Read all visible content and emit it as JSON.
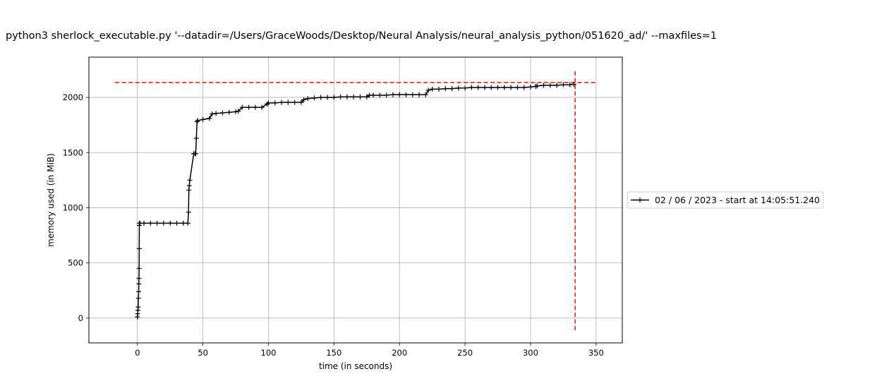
{
  "chart_data": {
    "type": "line",
    "title": "python3 sherlock_executable.py '--datadir=/Users/GraceWoods/Desktop/Neural Analysis/neural_analysis_python/051620_ad/' --maxfiles=1",
    "xlabel": "time (in seconds)",
    "ylabel": "memory used (in MiB)",
    "xlim": [
      -37,
      370
    ],
    "ylim": [
      -225,
      2365
    ],
    "xticks": [
      0,
      50,
      100,
      150,
      200,
      250,
      300,
      350
    ],
    "yticks": [
      0,
      500,
      1000,
      1500,
      2000
    ],
    "grid": true,
    "legend_position": "right",
    "series": [
      {
        "name": "02 / 06 / 2023 - start at 14:05:51.240",
        "color": "#000000",
        "marker": "+",
        "x": [
          0,
          0.2,
          0.4,
          0.6,
          0.8,
          1.0,
          1.1,
          1.2,
          1.3,
          1.4,
          1.5,
          1.6,
          1.8,
          2.0,
          5,
          10,
          15,
          20,
          25,
          30,
          35,
          38.5,
          39.0,
          39.3,
          39.6,
          40,
          43,
          44,
          44.5,
          45,
          45.5,
          46,
          50,
          55,
          57,
          60,
          65,
          70,
          75,
          77,
          80,
          85,
          90,
          95,
          99,
          100,
          105,
          110,
          115,
          120,
          125,
          127,
          130,
          135,
          140,
          145,
          150,
          155,
          160,
          165,
          170,
          175,
          177,
          180,
          185,
          190,
          195,
          200,
          205,
          210,
          215,
          220,
          222,
          225,
          230,
          235,
          240,
          245,
          250,
          255,
          260,
          265,
          270,
          275,
          280,
          285,
          290,
          295,
          300,
          304,
          305,
          310,
          315,
          320,
          325,
          330,
          333
        ],
        "y": [
          10,
          40,
          70,
          100,
          180,
          240,
          310,
          360,
          450,
          630,
          840,
          860,
          860,
          860,
          860,
          860,
          860,
          860,
          860,
          860,
          860,
          860,
          960,
          1160,
          1200,
          1250,
          1490,
          1490,
          1490,
          1630,
          1780,
          1790,
          1800,
          1810,
          1850,
          1855,
          1860,
          1865,
          1870,
          1875,
          1910,
          1910,
          1910,
          1910,
          1940,
          1950,
          1950,
          1955,
          1955,
          1955,
          1955,
          1980,
          1990,
          1995,
          2000,
          2000,
          2000,
          2005,
          2005,
          2005,
          2005,
          2005,
          2020,
          2020,
          2020,
          2020,
          2025,
          2025,
          2025,
          2025,
          2025,
          2025,
          2065,
          2075,
          2075,
          2080,
          2080,
          2085,
          2085,
          2090,
          2090,
          2090,
          2090,
          2090,
          2090,
          2090,
          2090,
          2090,
          2095,
          2100,
          2105,
          2110,
          2110,
          2110,
          2115,
          2115,
          2120
        ]
      }
    ],
    "reference_lines": [
      {
        "orientation": "horizontal",
        "value": 2135,
        "from": -17,
        "to": 350,
        "color": "#e8201b",
        "style": "dashed"
      },
      {
        "orientation": "vertical",
        "value": 334,
        "from": -110,
        "to": 2250,
        "color": "#e8201b",
        "style": "dashed"
      }
    ]
  }
}
